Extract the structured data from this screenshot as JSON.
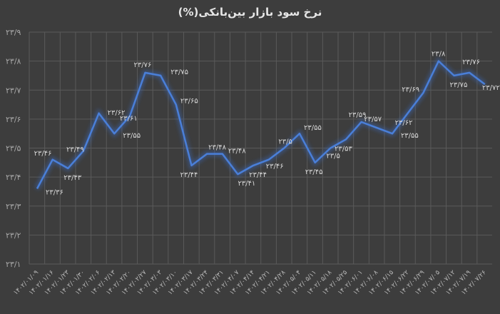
{
  "title": "نرخ سود بازار بین‌بانکی(%)",
  "colors": {
    "background": "#3d3d3d",
    "line": "#4a7fd8",
    "glow": "#3a64b0",
    "grid": "#5a5a5a",
    "text": "#d9d9d9"
  },
  "chart_data": {
    "type": "line",
    "title": "نرخ سود بازار بین‌بانکی(%)",
    "xlabel": "",
    "ylabel": "",
    "ylim": [
      23.1,
      23.9
    ],
    "yticks": [
      "۲۳/۹",
      "۲۳/۸",
      "۲۳/۷",
      "۲۳/۶",
      "۲۳/۵",
      "۲۳/۴",
      "۲۳/۳",
      "۲۳/۲",
      "۲۳/۱"
    ],
    "grid": true,
    "legend": "none",
    "categories": [
      "۱۴۰۲/۰۱/۰۹",
      "۱۴۰۲/۰۱/۱۶",
      "۱۴۰۲/۰۱/۲۳",
      "۱۴۰۲/۰۱/۳۰",
      "۱۴۰۲/۰۲/۰۶",
      "۱۴۰۲/۰۲/۱۳",
      "۱۴۰۲/۰۲/۲۰",
      "۱۴۰۲/۰۲/۲۷",
      "۱۴۰۲/۰۳/۰۳",
      "۱۴۰۲/۰۳/۱۰",
      "۱۴۰۲/۰۳/۱۷",
      "۱۴۰۲/۰۳/۲۴",
      "۱۴۰۲/۰۳/۳۱",
      "۱۴۰۲/۰۴/۰۷",
      "۱۴۰۲/۰۴/۱۴",
      "۱۴۰۲/۰۴/۲۱",
      "۱۴۰۲/۰۴/۲۸",
      "۱۴۰۲/۰۵/۰۴",
      "۱۴۰۲/۰۵/۱۱",
      "۱۴۰۲/۰۵/۱۸",
      "۱۴۰۲/۰۵/۲۵",
      "۱۴۰۲/۰۶/۰۱",
      "۱۴۰۲/۰۶/۰۸",
      "۱۴۰۲/۰۶/۱۵",
      "۱۴۰۲/۰۶/۲۲",
      "۱۴۰۲/۰۶/۲۹",
      "۱۴۰۲/۰۷/۰۵",
      "۱۴۰۲/۰۷/۱۲",
      "۱۴۰۲/۰۷/۱۹",
      "۱۴۰۲/۰۷/۲۶"
    ],
    "series": [
      {
        "name": "نرخ سود بازار بین‌بانکی",
        "values": [
          23.36,
          23.46,
          23.43,
          23.49,
          23.62,
          23.55,
          23.61,
          23.76,
          23.75,
          23.65,
          23.44,
          23.48,
          23.48,
          23.41,
          23.44,
          23.46,
          23.5,
          23.55,
          23.45,
          23.5,
          23.53,
          23.59,
          23.57,
          23.55,
          23.62,
          23.69,
          23.8,
          23.75,
          23.76,
          23.72
        ],
        "labels": [
          "۲۳/۳۶",
          "۲۳/۴۶",
          "۲۳/۴۳",
          "۲۳/۴۹",
          "۲۳/۶۲",
          "۲۳/۵۵",
          "۲۳/۶۱",
          "۲۳/۷۶",
          "۲۳/۷۵",
          "۲۳/۶۵",
          "۲۳/۴۴",
          "۲۳/۴۸",
          "۲۳/۴۸",
          "۲۳/۴۱",
          "۲۳/۴۴",
          "۲۳/۴۶",
          "۲۳/۵",
          "۲۳/۵۵",
          "۲۳/۴۵",
          "۲۳/۵",
          "۲۳/۵۳",
          "۲۳/۵۹",
          "۲۳/۵۷",
          "۲۳/۵۵",
          "۲۳/۶۲",
          "۲۳/۶۹",
          "۲۳/۸",
          "۲۳/۷۵",
          "۲۳/۷۶",
          "۲۳/۷۲"
        ]
      }
    ]
  }
}
